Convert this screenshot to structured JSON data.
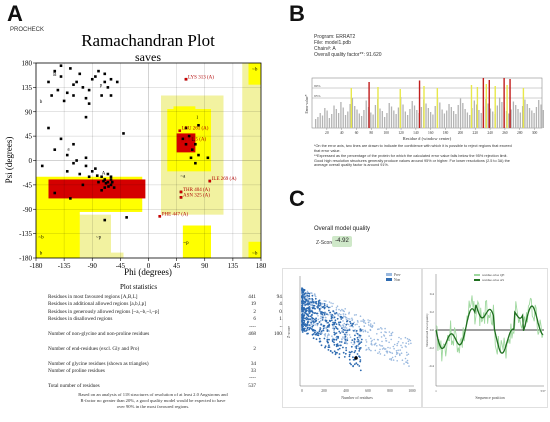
{
  "panel_labels": {
    "a": "A",
    "b": "B",
    "c": "C"
  },
  "procheck_label": "PROCHECK",
  "chart_data": [
    {
      "id": "ramachandran",
      "type": "scatter",
      "title": "Ramachandran Plot",
      "subtitle": "saves",
      "xlabel": "Phi (degrees)",
      "ylabel": "Psi (degrees)",
      "xlim": [
        -180,
        180
      ],
      "ylim": [
        -180,
        180
      ],
      "xticks": [
        "-180",
        "-135",
        "-90",
        "-45",
        "0",
        "45",
        "90",
        "135",
        "180"
      ],
      "yticks": [
        "180",
        "135",
        "90",
        "45",
        "0",
        "-45",
        "-90",
        "-135",
        "-180"
      ],
      "region_labels": [
        {
          "text": "B",
          "phi": -150,
          "psi": 160
        },
        {
          "text": "b",
          "phi": -172,
          "psi": 110
        },
        {
          "text": "A",
          "phi": -72,
          "psi": -22
        },
        {
          "text": "a",
          "phi": -128,
          "psi": 22
        },
        {
          "text": "l",
          "phi": 78,
          "psi": 80
        },
        {
          "text": "L",
          "phi": 72,
          "psi": 40
        },
        {
          "text": "~b",
          "phi": 170,
          "psi": 170
        },
        {
          "text": "~a",
          "phi": 55,
          "psi": -28
        },
        {
          "text": "~p",
          "phi": 60,
          "psi": -150
        },
        {
          "text": "~b",
          "phi": 170,
          "psi": -170
        },
        {
          "text": "b",
          "phi": -172,
          "psi": -170
        },
        {
          "text": "p",
          "phi": -76,
          "psi": 140
        },
        {
          "text": "~p",
          "phi": -80,
          "psi": -140
        },
        {
          "text": "~b",
          "phi": -172,
          "psi": -140
        }
      ],
      "annotations": [
        {
          "text": "LYS 313 (A)",
          "phi": 60,
          "psi": 150
        },
        {
          "text": "LEU 261 (A)",
          "phi": 50,
          "psi": 55
        },
        {
          "text": "TYR 5 (A)",
          "phi": 54,
          "psi": 35
        },
        {
          "text": "ILE 269 (A)",
          "phi": 98,
          "psi": -38
        },
        {
          "text": "THR 404 (A)",
          "phi": 52,
          "psi": -58
        },
        {
          "text": "ASN 325 (A)",
          "phi": 52,
          "psi": -68
        },
        {
          "text": "PHE 447 (A)",
          "phi": 18,
          "psi": -103
        }
      ],
      "points": [
        [
          -140,
          155
        ],
        [
          -120,
          140
        ],
        [
          -95,
          130
        ],
        [
          -70,
          145
        ],
        [
          -65,
          135
        ],
        [
          -150,
          165
        ],
        [
          -110,
          160
        ],
        [
          -85,
          155
        ],
        [
          -130,
          125
        ],
        [
          -100,
          115
        ],
        [
          -160,
          145
        ],
        [
          -75,
          120
        ],
        [
          -125,
          170
        ],
        [
          -145,
          130
        ],
        [
          -90,
          150
        ],
        [
          -115,
          145
        ],
        [
          -60,
          150
        ],
        [
          -135,
          110
        ],
        [
          -105,
          135
        ],
        [
          -80,
          165
        ],
        [
          -155,
          120
        ],
        [
          -95,
          105
        ],
        [
          -120,
          120
        ],
        [
          -70,
          160
        ],
        [
          -65,
          -40
        ],
        [
          -60,
          -45
        ],
        [
          -70,
          -35
        ],
        [
          -75,
          -30
        ],
        [
          -55,
          -50
        ],
        [
          -65,
          -25
        ],
        [
          -80,
          -40
        ],
        [
          -90,
          -20
        ],
        [
          -100,
          -10
        ],
        [
          -60,
          -35
        ],
        [
          -70,
          -50
        ],
        [
          -85,
          -15
        ],
        [
          -95,
          -30
        ],
        [
          -105,
          -45
        ],
        [
          -110,
          -25
        ],
        [
          -120,
          -5
        ],
        [
          -130,
          10
        ],
        [
          -75,
          -55
        ],
        [
          -60,
          -30
        ],
        [
          -68,
          -42
        ],
        [
          -72,
          -38
        ],
        [
          -64,
          -48
        ],
        [
          -58,
          -40
        ],
        [
          -82,
          -28
        ],
        [
          -140,
          40
        ],
        [
          -120,
          30
        ],
        [
          -150,
          20
        ],
        [
          -100,
          5
        ],
        [
          -130,
          -20
        ],
        [
          -115,
          0
        ],
        [
          -60,
          120
        ],
        [
          -100,
          80
        ],
        [
          -50,
          145
        ],
        [
          -160,
          60
        ],
        [
          -170,
          -10
        ],
        [
          -40,
          50
        ],
        [
          -150,
          -60
        ],
        [
          -125,
          -70
        ],
        [
          -70,
          -110
        ],
        [
          -35,
          -105
        ],
        [
          -140,
          175
        ],
        [
          55,
          40
        ],
        [
          60,
          30
        ],
        [
          70,
          20
        ],
        [
          65,
          45
        ],
        [
          80,
          10
        ],
        [
          75,
          30
        ],
        [
          68,
          5
        ],
        [
          95,
          5
        ],
        [
          80,
          65
        ],
        [
          60,
          60
        ],
        [
          75,
          -5
        ],
        [
          60,
          150
        ],
        [
          98,
          -38
        ],
        [
          52,
          -58
        ],
        [
          52,
          -68
        ],
        [
          18,
          -103
        ]
      ]
    },
    {
      "id": "errat",
      "type": "bar",
      "program_label": "Program: ERRAT2",
      "file_label": "File: model1.pdb",
      "chain_label": "Chain#: A",
      "quality_label": "Overall quality factor**: 91.620",
      "ylabel": "Error value*",
      "xlabel": "Residue # (window center)",
      "xlim": [
        0,
        310
      ],
      "xticks": [
        "20",
        "40",
        "60",
        "80",
        "100",
        "120",
        "140",
        "160",
        "180",
        "200",
        "220",
        "240",
        "260",
        "280",
        "300"
      ],
      "threshold_labels": [
        "99%",
        "95%"
      ],
      "footnote_1": "*On the error axis, two lines are drawn to indicate the confidence with which it is possible to reject regions that exceed that error value.",
      "footnote_2": "**Expressed as the percentage of the protein for which the calculated error value falls below the 95% rejection limit. Good high resolution structures generally produce values around 95% or higher. For lower resolutions (2.5 to 3A) the average overall quality factor is around 91%.",
      "bars_gray": [
        18,
        22,
        30,
        25,
        40,
        35,
        20,
        28,
        45,
        38,
        30,
        52,
        41,
        26,
        33,
        48,
        60,
        44,
        37,
        29,
        24,
        36,
        55,
        42,
        31,
        27,
        46,
        58,
        39,
        34,
        22,
        30,
        50,
        43,
        35,
        28,
        41,
        62,
        47,
        33,
        26,
        38,
        54,
        45,
        36,
        30,
        42,
        57,
        49,
        40,
        32,
        27,
        44,
        60,
        51,
        37,
        29,
        35,
        48,
        42,
        34,
        28,
        46,
        59,
        50,
        38,
        31,
        26,
        40,
        55,
        47,
        36,
        30,
        43,
        58,
        49,
        39,
        33,
        28,
        45,
        61,
        52,
        41,
        34,
        29,
        37,
        53,
        46,
        38,
        31,
        44,
        57,
        48,
        40,
        35,
        30,
        42,
        56,
        47,
        36
      ],
      "bars_yellow": [
        [
          52,
          80
        ],
        [
          88,
          82
        ],
        [
          118,
          78
        ],
        [
          150,
          84
        ],
        [
          168,
          80
        ],
        [
          214,
          86
        ],
        [
          222,
          82
        ],
        [
          234,
          88
        ],
        [
          246,
          84
        ],
        [
          262,
          86
        ],
        [
          284,
          80
        ]
      ],
      "bars_red": [
        [
          76,
          92
        ],
        [
          144,
          95
        ],
        [
          230,
          100
        ],
        [
          238,
          96
        ],
        [
          258,
          100
        ],
        [
          266,
          98
        ]
      ]
    },
    {
      "id": "qmean",
      "type": "scatter",
      "header": "Overall model quality",
      "zscore_label": "Z-Score",
      "zscore_value": "-4.92",
      "xlabel": "Number of residues",
      "ylabel": "Z-score",
      "legend": [
        "Prev",
        "Non"
      ],
      "xticks": [
        "0",
        "200",
        "400",
        "600",
        "800",
        "1000"
      ]
    },
    {
      "id": "local-quality",
      "type": "line",
      "xlabel": "Sequence position",
      "ylabel": "Normalized local quality",
      "legend": [
        "residue-wise QE",
        "residue-wise AS"
      ],
      "xticks": [
        "1",
        "537"
      ],
      "yticks": [
        "0.4",
        "0.2",
        "0.0",
        "-0.2",
        "-0.4"
      ],
      "hline": 0
    }
  ],
  "plot_statistics": {
    "title": "Plot statistics",
    "rows": [
      {
        "label": "Residues in most favoured regions      [A,B,L]",
        "count": "441",
        "pct": "94.2%"
      },
      {
        "label": "Residues in additional allowed regions  [a,b,l,p]",
        "count": "19",
        "pct": "4.1%"
      },
      {
        "label": "Residues in generously allowed regions  [~a,~b,~l,~p]",
        "count": "2",
        "pct": "0.4%"
      },
      {
        "label": "Residues in disallowed regions",
        "count": "6",
        "pct": "1.3%"
      },
      {
        "label": "",
        "count": "----",
        "pct": "------"
      },
      {
        "label": "Number of non-glycine and non-proline residues",
        "count": "468",
        "pct": "100.0%"
      },
      {
        "label": "",
        "count": "",
        "pct": ""
      },
      {
        "label": "Number of end-residues (excl. Gly and Pro)",
        "count": "2",
        "pct": ""
      },
      {
        "label": "",
        "count": "",
        "pct": ""
      },
      {
        "label": "Number of glycine residues (shown as triangles)",
        "count": "34",
        "pct": ""
      },
      {
        "label": "Number of proline residues",
        "count": "33",
        "pct": ""
      },
      {
        "label": "",
        "count": "----",
        "pct": ""
      },
      {
        "label": "Total number of residues",
        "count": "537",
        "pct": ""
      }
    ],
    "footnote": "Based on an analysis of 118 structures of resolution of at least 2.0 Angstroms and R-factor no greater than 20%, a good quality model would be expected to have over 90% in the most favoured regions."
  },
  "colors": {
    "core": "#d40000",
    "allowed": "#ffff00",
    "generous": "#f2f2a0",
    "disallowed": "#ffffff",
    "errat_gray": "#b3b3b3",
    "errat_yellow": "#e8e84a",
    "errat_red": "#c21d1d",
    "qmean_dark": "#2d6ab0",
    "qmean_light": "#9ab9df",
    "line_dark": "#1f6e1f",
    "line_light": "#9fd89f"
  }
}
